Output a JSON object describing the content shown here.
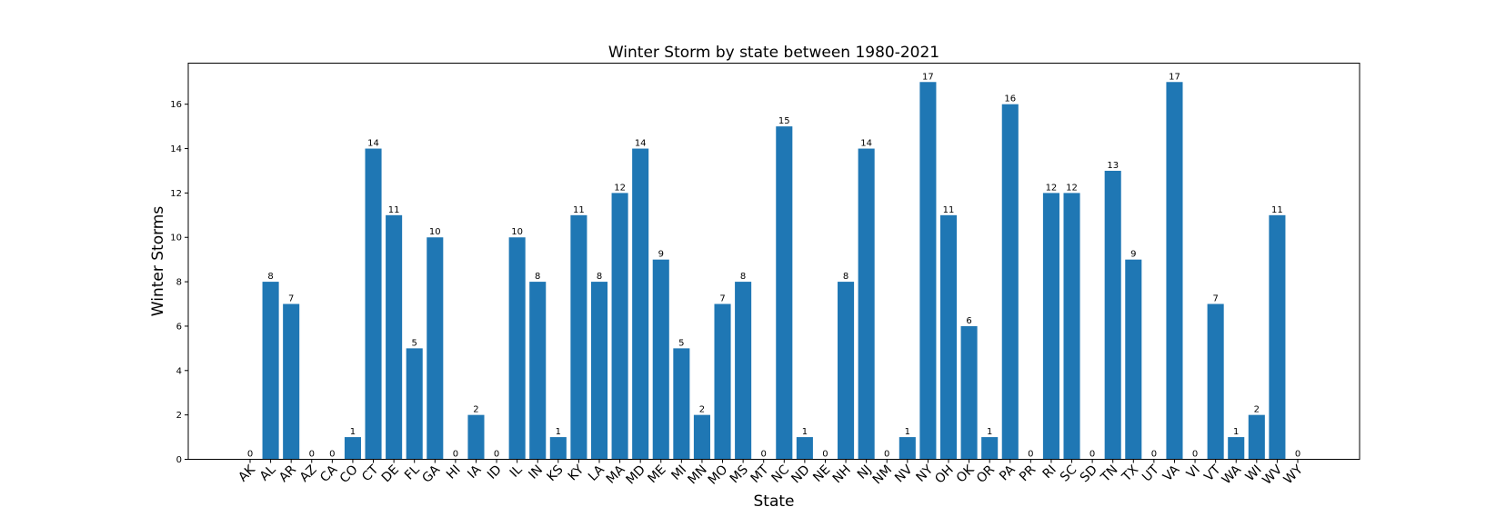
{
  "chart_data": {
    "type": "bar",
    "title": "Winter Storm by state between 1980-2021",
    "xlabel": "State",
    "ylabel": "Winter Storms",
    "ylim": [
      0,
      17.85
    ],
    "yticks": [
      0,
      2,
      4,
      6,
      8,
      10,
      12,
      14,
      16
    ],
    "grid": false,
    "bar_color": "#1f77b4",
    "categories": [
      "AK",
      "AL",
      "AR",
      "AZ",
      "CA",
      "CO",
      "CT",
      "DE",
      "FL",
      "GA",
      "HI",
      "IA",
      "ID",
      "IL",
      "IN",
      "KS",
      "KY",
      "LA",
      "MA",
      "MD",
      "ME",
      "MI",
      "MN",
      "MO",
      "MS",
      "MT",
      "NC",
      "ND",
      "NE",
      "NH",
      "NJ",
      "NM",
      "NV",
      "NY",
      "OH",
      "OK",
      "OR",
      "PA",
      "PR",
      "RI",
      "SC",
      "SD",
      "TN",
      "TX",
      "UT",
      "VA",
      "VI",
      "VT",
      "WA",
      "WI",
      "WV",
      "WY"
    ],
    "values": [
      0,
      8,
      7,
      0,
      0,
      1,
      14,
      11,
      5,
      10,
      0,
      2,
      0,
      10,
      8,
      1,
      11,
      8,
      12,
      14,
      9,
      5,
      2,
      7,
      8,
      0,
      15,
      1,
      0,
      8,
      14,
      0,
      1,
      17,
      11,
      6,
      1,
      16,
      0,
      12,
      12,
      0,
      13,
      9,
      0,
      17,
      0,
      7,
      1,
      2,
      11,
      0
    ]
  }
}
